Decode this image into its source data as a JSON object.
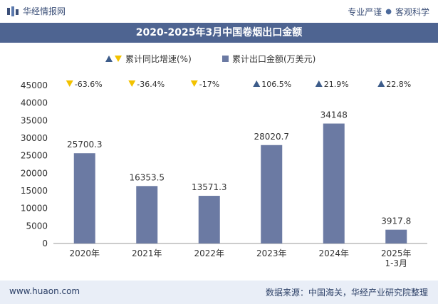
{
  "header": {
    "brand": "华经情报网",
    "tag_left": "专业严谨",
    "tag_right": "客观科学"
  },
  "footer": {
    "url": "www.huaon.com",
    "source": "数据来源：中国海关，华经产业研究院整理"
  },
  "colors": {
    "bar": "#6b7aa3",
    "up": "#3d5c8a",
    "down": "#f2c200",
    "title_bg": "#4e6491",
    "footer_bg": "#e9eef7"
  },
  "chart_data": {
    "type": "bar",
    "title": "2020-2025年3月中国卷烟出口金额",
    "categories": [
      "2020年",
      "2021年",
      "2022年",
      "2023年",
      "2024年",
      "2025年\n1-3月"
    ],
    "series": [
      {
        "name": "累计出口金额(万美元)",
        "values": [
          25700.3,
          16353.5,
          13571.3,
          28020.7,
          34148,
          3917.8
        ],
        "labels": [
          "25700.3",
          "16353.5",
          "13571.3",
          "28020.7",
          "34148",
          "3917.8"
        ]
      },
      {
        "name": "累计同比增速(%)",
        "values": [
          -63.6,
          -36.4,
          -17,
          106.5,
          21.9,
          22.8
        ],
        "labels": [
          "-63.6%",
          "-36.4%",
          "-17%",
          "106.5%",
          "21.9%",
          "22.8%"
        ]
      }
    ],
    "yticks": [
      0,
      5000,
      10000,
      15000,
      20000,
      25000,
      30000,
      35000,
      40000,
      45000
    ],
    "ylim": [
      0,
      45000
    ],
    "legend_position": "top-center",
    "grid": false
  }
}
